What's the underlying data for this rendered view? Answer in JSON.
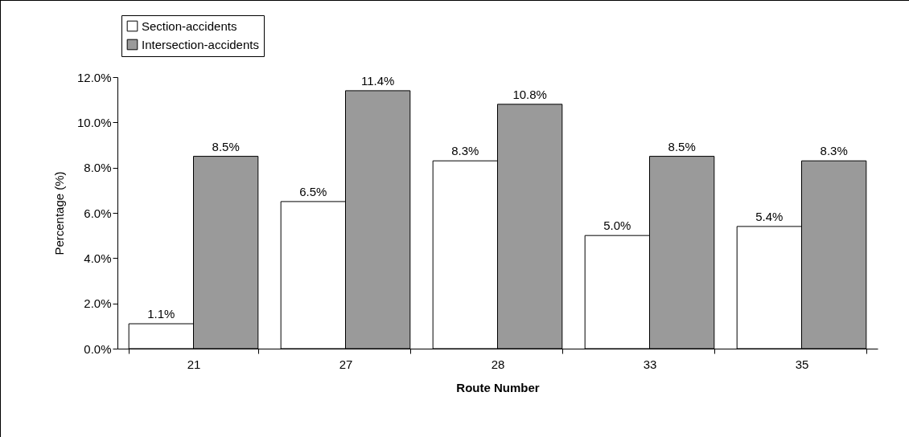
{
  "chart_data": {
    "type": "bar",
    "xlabel": "Route Number",
    "ylabel": "Percentage (%)",
    "categories": [
      "21",
      "27",
      "28",
      "33",
      "35"
    ],
    "series": [
      {
        "name": "Section-accidents",
        "color": "#ffffff",
        "values": [
          1.1,
          6.5,
          8.3,
          5.0,
          5.4
        ],
        "value_labels": [
          "1.1%",
          "6.5%",
          "8.3%",
          "5.0%",
          "5.4%"
        ]
      },
      {
        "name": "Intersection-accidents",
        "color": "#9a9a9a",
        "values": [
          8.5,
          11.4,
          10.8,
          8.5,
          8.3
        ],
        "value_labels": [
          "8.5%",
          "11.4%",
          "10.8%",
          "8.5%",
          "8.3%"
        ]
      }
    ],
    "ylim": [
      0,
      12
    ],
    "yticks": [
      {
        "value": 0,
        "label": "0.0%"
      },
      {
        "value": 2,
        "label": "2.0%"
      },
      {
        "value": 4,
        "label": "4.0%"
      },
      {
        "value": 6,
        "label": "6.0%"
      },
      {
        "value": 8,
        "label": "8.0%"
      },
      {
        "value": 10,
        "label": "10.0%"
      },
      {
        "value": 12,
        "label": "12.0%"
      }
    ],
    "legend": "top left",
    "grid": false
  }
}
